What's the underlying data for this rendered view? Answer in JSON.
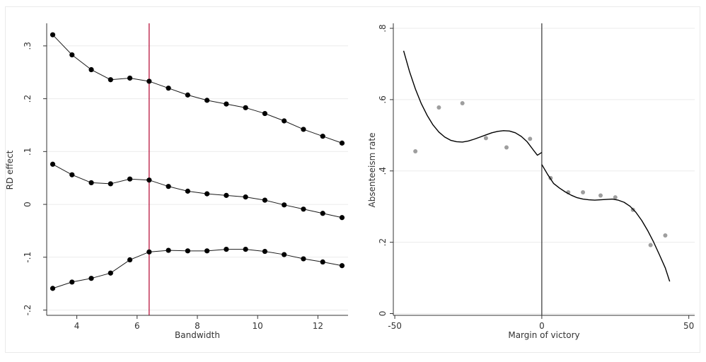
{
  "chart_data": [
    {
      "type": "line",
      "xlabel": "Bandwidth",
      "ylabel": "RD effect",
      "xlim": [
        3.0,
        13.0
      ],
      "ylim": [
        -0.21,
        0.34
      ],
      "xticks": [
        4,
        6,
        8,
        10,
        12
      ],
      "xtick_labels": [
        "4",
        "6",
        "8",
        "10",
        "12"
      ],
      "yticks": [
        -0.2,
        -0.1,
        0,
        0.1,
        0.2,
        0.3
      ],
      "ytick_labels": [
        "-.2",
        "-.1",
        "0",
        ".1",
        ".2",
        ".3"
      ],
      "grid": true,
      "vline": {
        "x": 6.4,
        "color": "#b3002d"
      },
      "x": [
        3.2,
        3.84,
        4.48,
        5.12,
        5.76,
        6.4,
        7.04,
        7.68,
        8.32,
        8.96,
        9.6,
        10.24,
        10.88,
        11.52,
        12.16,
        12.8
      ],
      "series": [
        {
          "values": [
            0.321,
            0.283,
            0.255,
            0.236,
            0.239,
            0.233,
            0.22,
            0.207,
            0.197,
            0.19,
            0.183,
            0.172,
            0.158,
            0.142,
            0.129,
            0.116
          ]
        },
        {
          "values": [
            0.076,
            0.056,
            0.041,
            0.039,
            0.048,
            0.046,
            0.034,
            0.025,
            0.02,
            0.017,
            0.014,
            0.008,
            -0.001,
            -0.009,
            -0.017,
            -0.025
          ]
        },
        {
          "values": [
            -0.159,
            -0.147,
            -0.14,
            -0.13,
            -0.105,
            -0.09,
            -0.087,
            -0.088,
            -0.088,
            -0.085,
            -0.085,
            -0.089,
            -0.095,
            -0.103,
            -0.109,
            -0.116
          ]
        }
      ],
      "colors": {
        "line": "#1a1a1a",
        "marker": "#000000"
      }
    },
    {
      "type": "scatter",
      "xlabel": "Margin of victory",
      "ylabel": "Absenteeism rate",
      "xlim": [
        -50.5,
        52.0
      ],
      "ylim": [
        -0.005,
        0.81
      ],
      "xticks": [
        -50,
        0,
        50
      ],
      "xtick_labels": [
        "-50",
        "0",
        "50"
      ],
      "yticks": [
        0,
        0.2,
        0.4,
        0.6,
        0.8
      ],
      "ytick_labels": [
        "0",
        ".2",
        ".4",
        ".6",
        ".8"
      ],
      "grid": true,
      "vline": {
        "x": 0,
        "color": "#333333"
      },
      "points": [
        {
          "x": -43,
          "y": 0.455
        },
        {
          "x": -35,
          "y": 0.578
        },
        {
          "x": -27,
          "y": 0.59
        },
        {
          "x": -19,
          "y": 0.492
        },
        {
          "x": -12,
          "y": 0.466
        },
        {
          "x": -4,
          "y": 0.49
        },
        {
          "x": 3,
          "y": 0.38
        },
        {
          "x": 9,
          "y": 0.34
        },
        {
          "x": 14,
          "y": 0.34
        },
        {
          "x": 20,
          "y": 0.331
        },
        {
          "x": 25,
          "y": 0.326
        },
        {
          "x": 31,
          "y": 0.291
        },
        {
          "x": 37,
          "y": 0.192
        },
        {
          "x": 42,
          "y": 0.219
        }
      ],
      "fit_left": [
        [
          -47,
          0.737
        ],
        [
          -45,
          0.679
        ],
        [
          -43,
          0.63
        ],
        [
          -41,
          0.589
        ],
        [
          -39,
          0.556
        ],
        [
          -37,
          0.529
        ],
        [
          -35,
          0.509
        ],
        [
          -33,
          0.495
        ],
        [
          -31,
          0.486
        ],
        [
          -29,
          0.482
        ],
        [
          -27,
          0.481
        ],
        [
          -25,
          0.484
        ],
        [
          -23,
          0.489
        ],
        [
          -21,
          0.495
        ],
        [
          -19,
          0.501
        ],
        [
          -17,
          0.507
        ],
        [
          -15,
          0.511
        ],
        [
          -13,
          0.513
        ],
        [
          -11,
          0.512
        ],
        [
          -9,
          0.507
        ],
        [
          -7,
          0.497
        ],
        [
          -5,
          0.482
        ],
        [
          -3,
          0.46
        ],
        [
          -1.5,
          0.444
        ],
        [
          0,
          0.452
        ]
      ],
      "fit_right": [
        [
          0,
          0.418
        ],
        [
          2,
          0.39
        ],
        [
          4,
          0.365
        ],
        [
          6,
          0.352
        ],
        [
          8,
          0.341
        ],
        [
          10,
          0.332
        ],
        [
          12,
          0.325
        ],
        [
          14,
          0.321
        ],
        [
          16,
          0.319
        ],
        [
          18,
          0.318
        ],
        [
          20,
          0.319
        ],
        [
          22,
          0.32
        ],
        [
          24,
          0.321
        ],
        [
          26,
          0.318
        ],
        [
          28,
          0.312
        ],
        [
          30,
          0.301
        ],
        [
          32,
          0.284
        ],
        [
          34,
          0.261
        ],
        [
          36,
          0.233
        ],
        [
          38,
          0.201
        ],
        [
          40,
          0.165
        ],
        [
          42,
          0.128
        ],
        [
          43.5,
          0.09
        ]
      ],
      "colors": {
        "points": "#9e9e9e",
        "fit": "#000000"
      }
    }
  ]
}
